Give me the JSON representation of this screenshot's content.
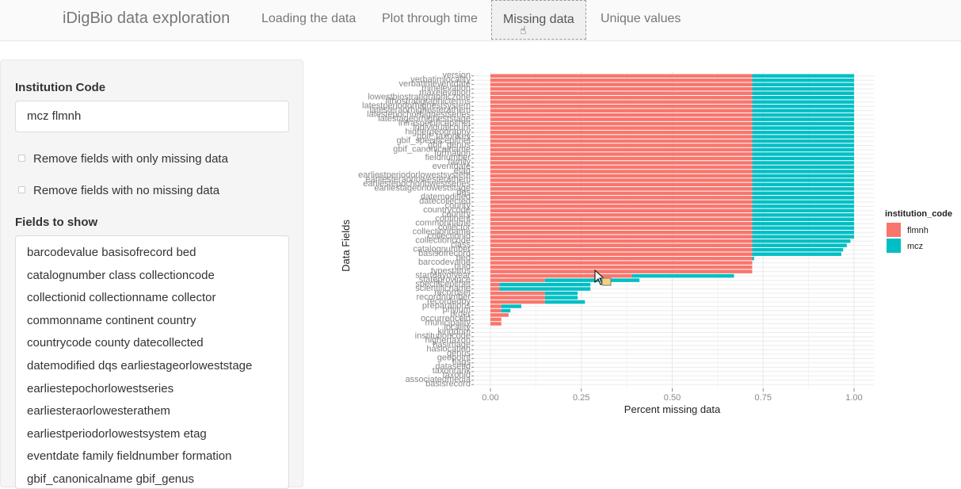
{
  "navbar": {
    "brand": "iDigBio data exploration",
    "tabs": [
      {
        "label": "Loading the data",
        "active": false
      },
      {
        "label": "Plot through time",
        "active": false
      },
      {
        "label": "Missing data",
        "active": true
      },
      {
        "label": "Unique values",
        "active": false
      }
    ]
  },
  "sidebar": {
    "institution_label": "Institution Code",
    "institution_value": "mcz  flmnh",
    "check1_label": "Remove fields with only missing data",
    "check1_checked": false,
    "check2_label": "Remove fields with no missing data",
    "check2_checked": false,
    "fields_label": "Fields to show",
    "fields_lines": [
      "barcodevalue  basisofrecord  bed",
      "catalognumber  class  collectioncode",
      "collectionid  collectionname  collector",
      "commonname  continent  country",
      "countrycode  county  datecollected",
      "datemodified  dqs  earliestageorloweststage",
      "earliestepochorlowestseries",
      "earliesteraorlowesterathem",
      "earliestperiodorlowestsystem  etag",
      "eventdate  family  fieldnumber  formation",
      "gbif_canonicalname  gbif_genus"
    ]
  },
  "colors": {
    "flmnh": "#F8766D",
    "mcz": "#00BFC4"
  },
  "chart_data": {
    "type": "bar",
    "stacked": true,
    "orientation": "horizontal",
    "xlabel": "Percent missing data",
    "ylabel": "Data Fields",
    "xlim": [
      0,
      1.0
    ],
    "xticks": [
      "0.00",
      "0.25",
      "0.50",
      "0.75",
      "1.00"
    ],
    "legend_title": "institution_code",
    "legend": [
      "flmnh",
      "mcz"
    ],
    "legend_position": "right",
    "categories": [
      "version",
      "verbatimlocality",
      "verbatimeventdate",
      "minelevation",
      "maxelevation",
      "lowestbiostratigraphiczone",
      "lithostratigraphicterms",
      "latestperiodorhighestsystem",
      "latesteraorhighesterathem",
      "latestepochorhighestseries",
      "latestageorhigheststage",
      "infraspecificepithet",
      "individualcount",
      "highergeography",
      "gbif_taxonkey",
      "gbif_specificepithet",
      "gbif_genus",
      "gbif_canonicalname",
      "formation",
      "fieldnumber",
      "family",
      "eventdate",
      "etag",
      "earliestperiodorlowestsystem",
      "earliesteraorlowesterathem",
      "earliestepochorlowestseries",
      "earliestageorloweststage",
      "dqs",
      "datemodified",
      "datecollected",
      "county",
      "countrycode",
      "country",
      "continent",
      "commonname",
      "collector",
      "collectionname",
      "collectionid",
      "collectioncode",
      "class",
      "catalognumber",
      "basisofrecord",
      "bed",
      "barcodevalue",
      "uuid",
      "typestatus",
      "startdayofyear",
      "stateprovince",
      "specificepithet",
      "scientificname",
      "recordset",
      "recordnumber",
      "recordedby",
      "preparations",
      "phylum",
      "order",
      "occurrenceid",
      "municipality",
      "locality",
      "kingdom",
      "institutioncode",
      "highertaxon",
      "hasimage",
      "haslocation",
      "genus",
      "geopoint",
      "flags",
      "datasetid",
      "taxonrank",
      "taxonid",
      "associatedmedia",
      "basisrecord"
    ],
    "series": [
      {
        "name": "flmnh",
        "values": [
          0.72,
          0.72,
          0.72,
          0.72,
          0.72,
          0.72,
          0.72,
          0.72,
          0.72,
          0.72,
          0.72,
          0.72,
          0.72,
          0.72,
          0.72,
          0.72,
          0.72,
          0.72,
          0.72,
          0.72,
          0.72,
          0.72,
          0.72,
          0.72,
          0.72,
          0.72,
          0.72,
          0.72,
          0.72,
          0.72,
          0.72,
          0.72,
          0.72,
          0.72,
          0.72,
          0.72,
          0.72,
          0.72,
          0.72,
          0.72,
          0.72,
          0.72,
          0.72,
          0.72,
          0.72,
          0.72,
          0.39,
          0.15,
          0.025,
          0.025,
          0.15,
          0.15,
          0.15,
          0.03,
          0.03,
          0.05,
          0.03,
          0.03,
          0,
          0,
          0,
          0,
          0,
          0,
          0,
          0,
          0,
          0,
          0,
          0,
          0,
          0
        ]
      },
      {
        "name": "mcz",
        "values": [
          0.28,
          0.28,
          0.28,
          0.28,
          0.28,
          0.28,
          0.28,
          0.28,
          0.28,
          0.28,
          0.28,
          0.28,
          0.28,
          0.28,
          0.28,
          0.28,
          0.28,
          0.28,
          0.28,
          0.28,
          0.28,
          0.28,
          0.28,
          0.28,
          0.28,
          0.28,
          0.28,
          0.28,
          0.28,
          0.28,
          0.28,
          0.28,
          0.28,
          0.28,
          0.28,
          0.28,
          0.28,
          0.28,
          0.27,
          0.26,
          0.25,
          0.245,
          0.005,
          0,
          0,
          0,
          0.28,
          0.26,
          0.25,
          0.25,
          0.09,
          0.09,
          0.11,
          0.055,
          0.025,
          0,
          0,
          0,
          0,
          0,
          0,
          0,
          0,
          0,
          0,
          0,
          0,
          0,
          0,
          0,
          0,
          0
        ]
      }
    ],
    "grid": true
  }
}
